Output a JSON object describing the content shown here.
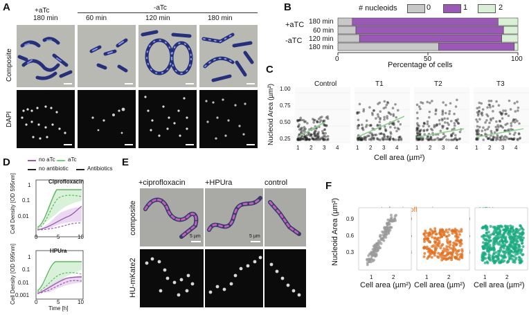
{
  "panel_a": {
    "label": "A",
    "plus_atc": "+aTc",
    "plus_atc_time": "180 min",
    "minus_atc": "-aTc",
    "times": [
      "60 min",
      "120 min",
      "180 min"
    ],
    "row_composite": "Composite",
    "row_dapi": "DAPI"
  },
  "panel_b": {
    "label": "B",
    "legend_title": "# nucleoids",
    "legend": [
      {
        "name": "0",
        "color": "#c8c8c8"
      },
      {
        "name": "1",
        "color": "#9b59b6"
      },
      {
        "name": "2",
        "color": "#d9efd6"
      }
    ],
    "plus_atc": "+aTC",
    "minus_atc": "-aTC",
    "rows": [
      "180 min",
      "60 min",
      "120 min",
      "180 min"
    ],
    "xlabel": "Percentage of cells",
    "ticks": [
      "0",
      "50",
      "100"
    ]
  },
  "panel_c": {
    "label": "C",
    "titles": [
      "Control",
      "T1",
      "T2",
      "T3"
    ],
    "ylabel": "Nucleoid Area (µm²)",
    "xlabel": "Cell area (µm²)",
    "yticks": [
      "1.00",
      "0.75",
      "0.50",
      "0.25"
    ],
    "xticks": [
      "1",
      "2",
      "3",
      "4"
    ]
  },
  "panel_d": {
    "label": "D",
    "legend": [
      "no aTc",
      "aTc",
      "no antibiotic",
      "Antibiotics"
    ],
    "top_title": "Ciprofloxacin",
    "bottom_title": "HPUra",
    "ylabel": "Cell Density [OD 595nm]",
    "xlabel": "Time [h]",
    "top_yticks": [
      "1",
      "0.1",
      "0.01"
    ],
    "bottom_yticks": [
      "1",
      "0.1",
      "0.01",
      "0.001"
    ],
    "xticks": [
      "0",
      "5",
      "10"
    ]
  },
  "panel_e": {
    "label": "E",
    "cols": [
      "+ciprofloxacin",
      "+HPUra",
      "control"
    ],
    "row_composite": "composite",
    "row_hu": "HU-mKate2",
    "scalebar": "5 µm"
  },
  "panel_f": {
    "label": "F",
    "ylabel": "Nucleoid Area (µm²)",
    "xlabel": "Cell area (µm²)",
    "titles": [
      "control",
      "+ciprofloxacin",
      "+HPUra"
    ],
    "title_colors": [
      "#333333",
      "#e07020",
      "#1aaa80"
    ],
    "yticks": [
      "0.9",
      "0.6",
      "0.3"
    ],
    "xticks": [
      "1",
      "2"
    ]
  },
  "chart_data": [
    {
      "type": "bar",
      "orientation": "horizontal-stacked",
      "categories": [
        "+aTC 180 min",
        "-aTC 60 min",
        "-aTC 120 min",
        "-aTC 180 min"
      ],
      "series": [
        {
          "name": "0",
          "values": [
            8,
            10,
            12,
            56
          ]
        },
        {
          "name": "1",
          "values": [
            81,
            82,
            79,
            42
          ]
        },
        {
          "name": "2",
          "values": [
            11,
            8,
            9,
            2
          ]
        }
      ],
      "xlabel": "Percentage of cells",
      "xlim": [
        0,
        100
      ],
      "legend": "top"
    }
  ]
}
